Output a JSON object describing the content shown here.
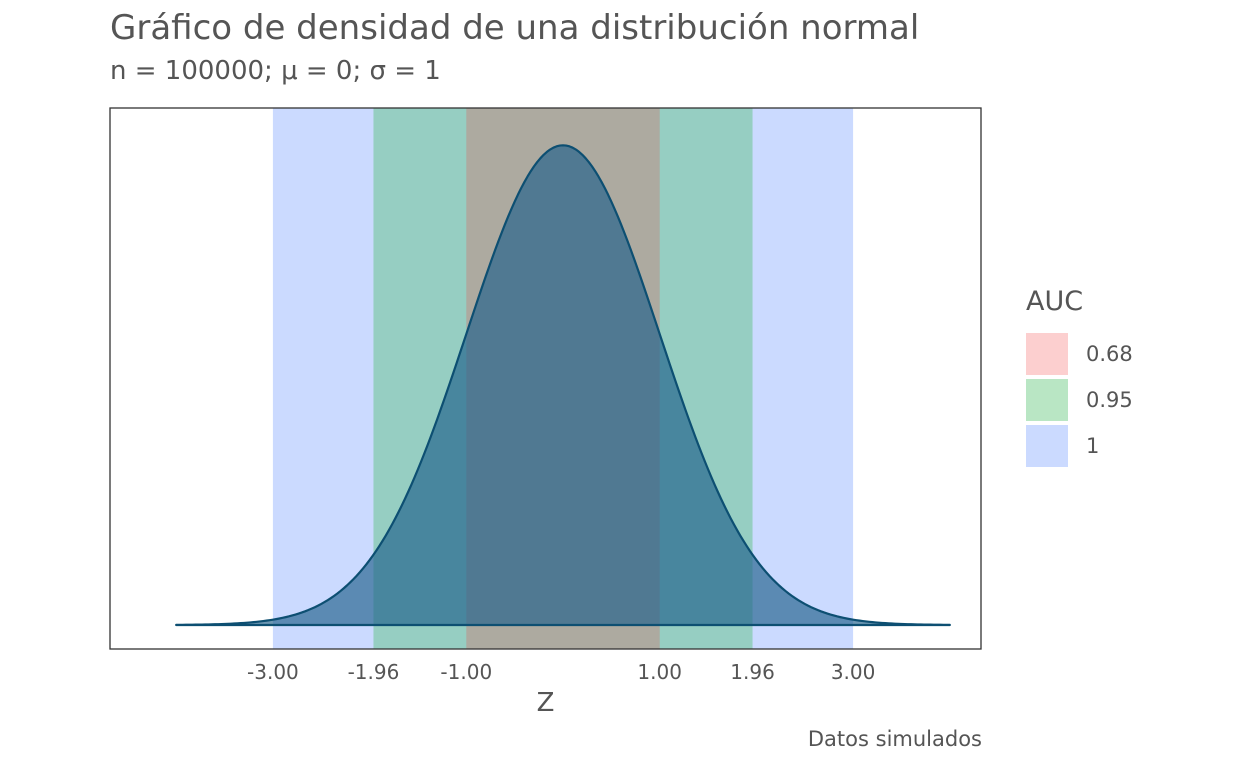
{
  "title": "Gráfico de densidad de una distribución normal",
  "subtitle": "n = 100000; μ = 0; σ = 1",
  "caption": "Datos simulados",
  "legend": {
    "title": "AUC",
    "items": [
      {
        "label": "0.68",
        "color": "#fccfcf"
      },
      {
        "label": "0.95",
        "color": "#b9e6c4"
      },
      {
        "label": "1",
        "color": "#cbdaff"
      }
    ]
  },
  "chart_data": {
    "type": "area",
    "xlabel": "Z",
    "ylabel": "",
    "xlim": [
      -4.0,
      4.0
    ],
    "ylim": [
      0,
      0.41
    ],
    "x_ticks": [
      -3.0,
      -1.96,
      -1.0,
      1.0,
      1.96,
      3.0
    ],
    "x_tick_labels": [
      "-3.00",
      "-1.96",
      "-1.00",
      "1.00",
      "1.96",
      "3.00"
    ],
    "y_ticks": [],
    "grid": false,
    "legend_position": "right",
    "bands": [
      {
        "name": "1",
        "from": -3.0,
        "to": 3.0,
        "color": "#cbdaff"
      },
      {
        "name": "0.95",
        "from": -1.96,
        "to": 1.96,
        "color": "#96cec2"
      },
      {
        "name": "0.68",
        "from": -1.0,
        "to": 1.0,
        "color": "#adaaa0"
      }
    ],
    "density": {
      "mean": 0,
      "sd": 1,
      "n": 100000,
      "fill": "#1f5f8b",
      "fill_opacity": 0.65,
      "stroke": "#0d4f72"
    }
  }
}
